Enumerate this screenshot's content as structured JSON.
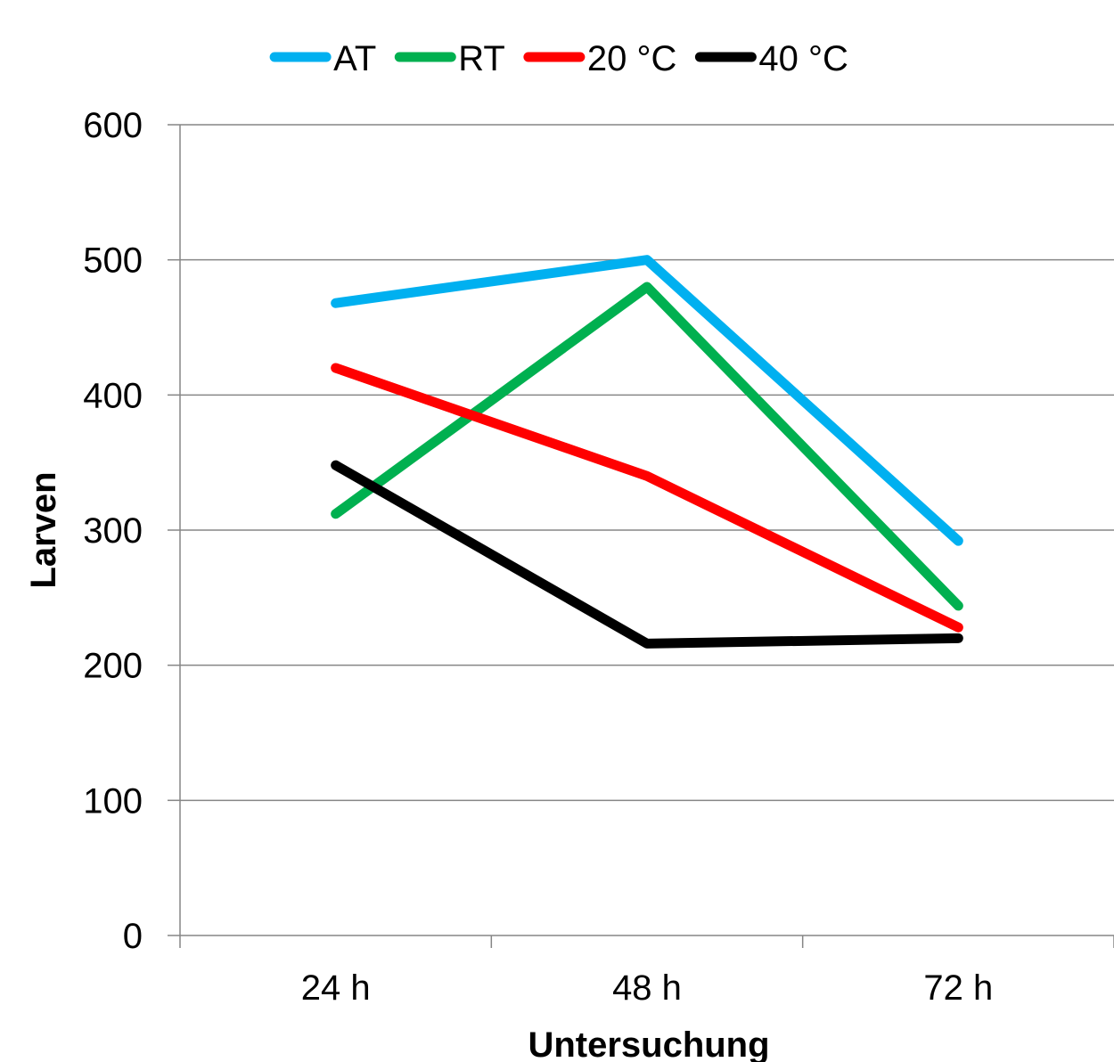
{
  "chart_data": {
    "type": "line",
    "categories": [
      "24 h",
      "48 h",
      "72 h"
    ],
    "series": [
      {
        "name": "AT",
        "color": "#00B0F0",
        "values": [
          468,
          500,
          292
        ]
      },
      {
        "name": "RT",
        "color": "#00B050",
        "values": [
          312,
          480,
          244
        ]
      },
      {
        "name": "20 °C",
        "color": "#FF0000",
        "values": [
          420,
          340,
          228
        ]
      },
      {
        "name": "40 °C",
        "color": "#000000",
        "values": [
          348,
          216,
          220
        ]
      }
    ],
    "xlabel": "Untersuchung",
    "ylabel": "Larven",
    "ylim": [
      0,
      600
    ],
    "yticks": [
      "0",
      "100",
      "200",
      "300",
      "400",
      "500",
      "600"
    ],
    "grid": true,
    "legend": "top"
  }
}
